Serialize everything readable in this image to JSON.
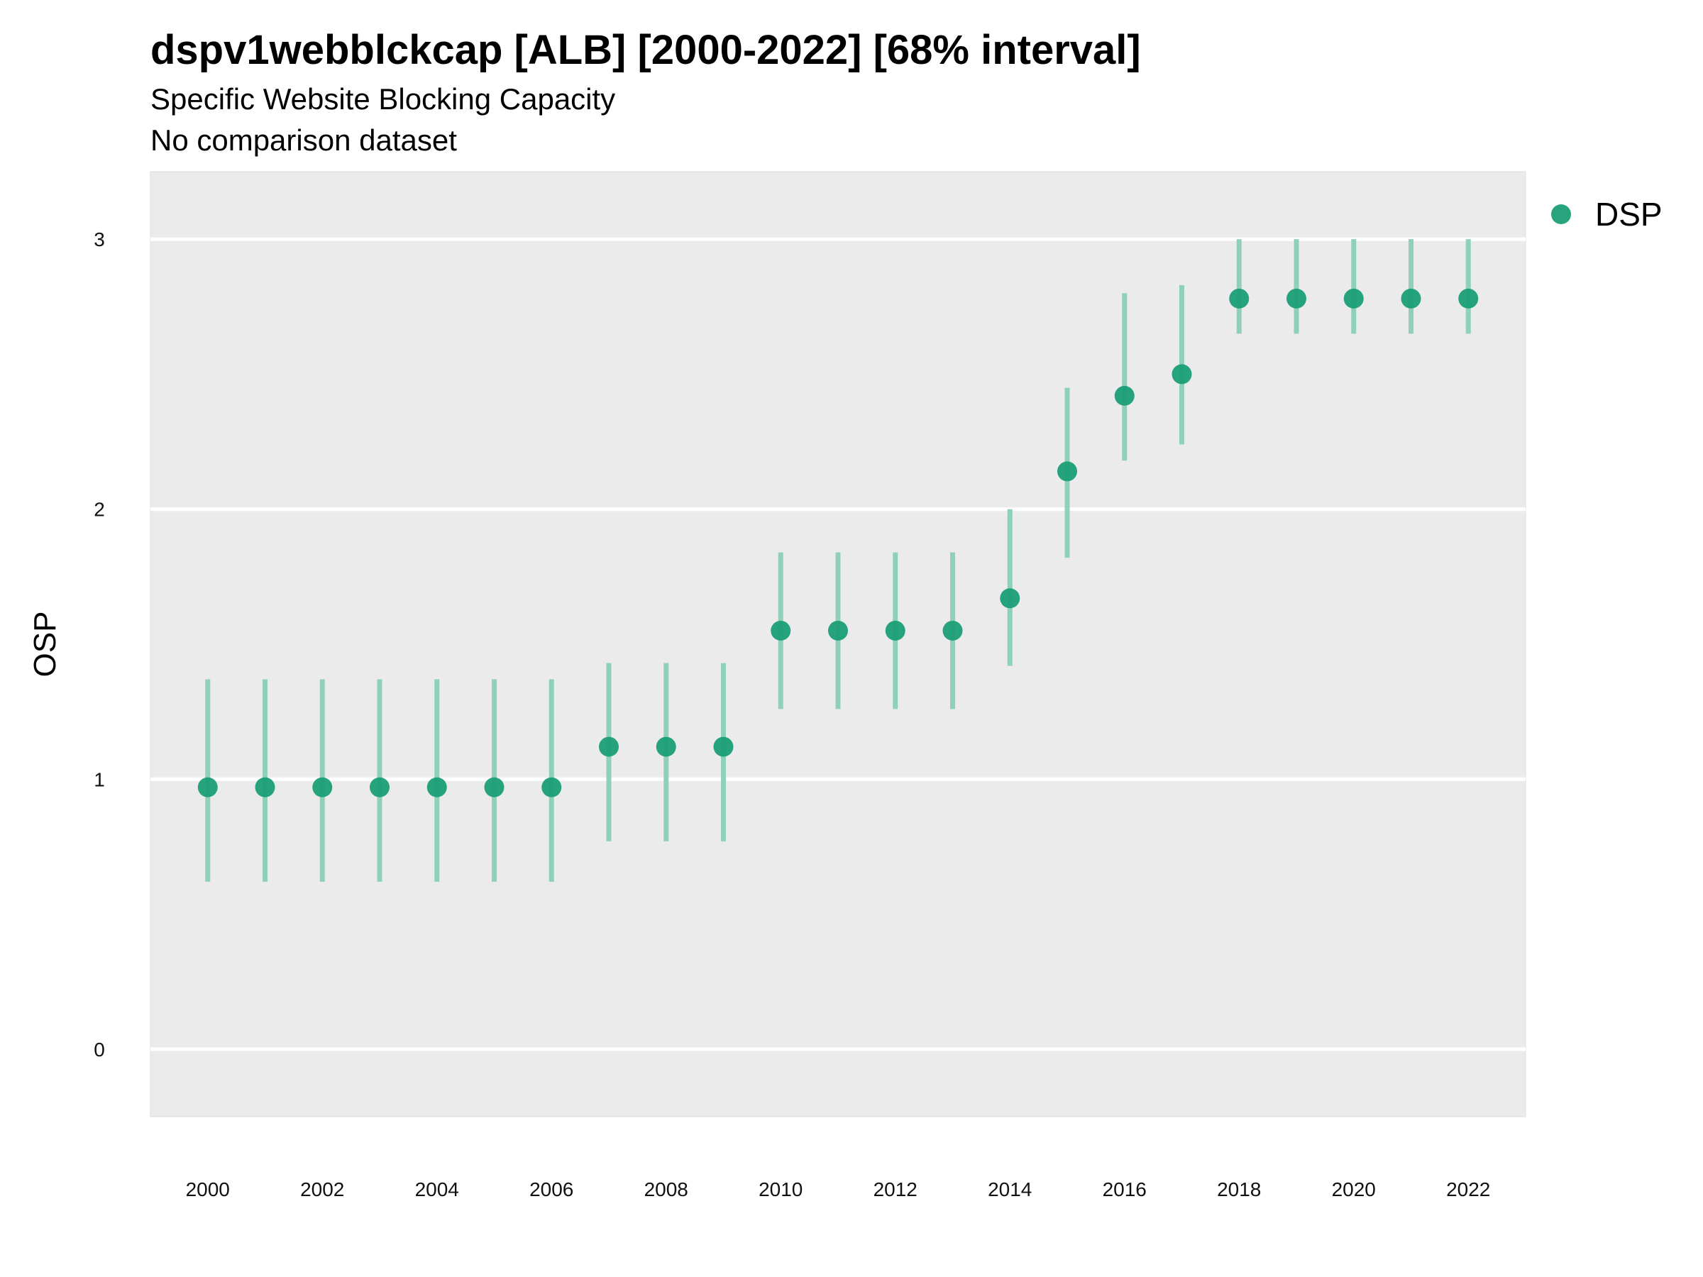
{
  "chart_data": {
    "type": "scatter",
    "title": "dspv1webblckcap [ALB] [2000-2022] [68% interval]",
    "subtitle": "Specific Website Blocking Capacity",
    "caption": "No comparison dataset",
    "ylabel": "OSP",
    "xlabel": "",
    "ylim": [
      -0.25,
      3.25
    ],
    "xlim": [
      1999.0,
      2023.0
    ],
    "yticks": [
      0,
      1,
      2,
      3
    ],
    "xticks": [
      2000,
      2002,
      2004,
      2006,
      2008,
      2010,
      2012,
      2014,
      2016,
      2018,
      2020,
      2022
    ],
    "grid": true,
    "legend_position": "right",
    "colors": {
      "point": "#1b9e77",
      "interval": "#8fd0b9",
      "panel": "#ebebeb",
      "grid": "#ffffff"
    },
    "series": [
      {
        "name": "DSP",
        "x": [
          2000,
          2001,
          2002,
          2003,
          2004,
          2005,
          2006,
          2007,
          2008,
          2009,
          2010,
          2011,
          2012,
          2013,
          2014,
          2015,
          2016,
          2017,
          2018,
          2019,
          2020,
          2021,
          2022
        ],
        "y": [
          0.97,
          0.97,
          0.97,
          0.97,
          0.97,
          0.97,
          0.97,
          1.12,
          1.12,
          1.12,
          1.55,
          1.55,
          1.55,
          1.55,
          1.67,
          2.14,
          2.42,
          2.5,
          2.78,
          2.78,
          2.78,
          2.78,
          2.78
        ],
        "lower": [
          0.62,
          0.62,
          0.62,
          0.62,
          0.62,
          0.62,
          0.62,
          0.77,
          0.77,
          0.77,
          1.26,
          1.26,
          1.26,
          1.26,
          1.42,
          1.82,
          2.18,
          2.24,
          2.65,
          2.65,
          2.65,
          2.65,
          2.65
        ],
        "upper": [
          1.37,
          1.37,
          1.37,
          1.37,
          1.37,
          1.37,
          1.37,
          1.43,
          1.43,
          1.43,
          1.84,
          1.84,
          1.84,
          1.84,
          2.0,
          2.45,
          2.8,
          2.83,
          3.0,
          3.0,
          3.0,
          3.0,
          3.0
        ]
      }
    ]
  }
}
